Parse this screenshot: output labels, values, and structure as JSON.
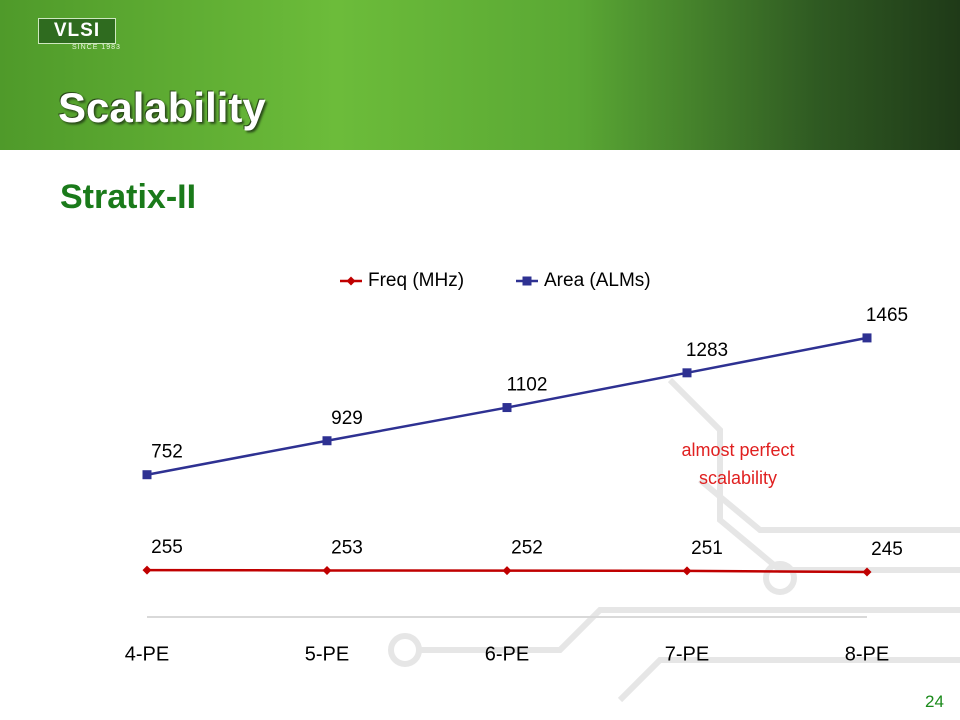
{
  "header": {
    "logo": "VLSI",
    "logo_tagline": "SINCE 1983",
    "title": "Scalability"
  },
  "subtitle": "Stratix-II",
  "slide_number": 24,
  "chart_data": {
    "type": "line",
    "categories": [
      "4-PE",
      "5-PE",
      "6-PE",
      "7-PE",
      "8-PE"
    ],
    "series": [
      {
        "name": "Freq (MHz)",
        "color": "#c00000",
        "marker": "diamond",
        "values": [
          255,
          253,
          252,
          251,
          245
        ]
      },
      {
        "name": "Area (ALMs)",
        "color": "#2e3192",
        "marker": "square",
        "values": [
          752,
          929,
          1102,
          1283,
          1465
        ]
      }
    ],
    "ylim": [
      0,
      1600
    ],
    "annotation": "almost perfect scalability",
    "legend": "top"
  }
}
